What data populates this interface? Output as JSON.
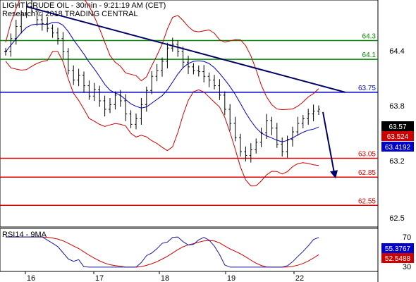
{
  "header": {
    "title": "LIGHT CRUDE OIL - 30min - 9:21:19 AM (CET)",
    "subtitle": "Research © 2018 TRADING CENTRAL"
  },
  "rsi_label": "RSI14 - 9MA",
  "colors": {
    "price": "#000000",
    "bollinger": "#cc0000",
    "ma": "#0000bb",
    "trendline": "#000066",
    "resistance": "#008800",
    "support": "#dd0000",
    "pivot": "#0000cc",
    "rsi": "#1a1aa0",
    "rsi_ma": "#cc0000",
    "tag_price_bg": "#000000",
    "tag_upper_bg": "#cc0000",
    "tag_lower_bg": "#0000cc"
  },
  "chart_data": [
    {
      "type": "line",
      "name": "price",
      "ylim": [
        62.35,
        64.7
      ],
      "y_ticks": [
        64.4,
        63.8,
        63.2,
        62.5
      ],
      "x_ticks": [
        "16",
        "17",
        "18",
        "19",
        "22"
      ],
      "levels": [
        {
          "value": 64.3,
          "label": "64.3",
          "color": "#008800"
        },
        {
          "value": 64.1,
          "label": "64.1",
          "color": "#008800"
        },
        {
          "value": 63.75,
          "label": "63.75",
          "color": "#0000cc"
        },
        {
          "value": 63.05,
          "label": "63.05",
          "color": "#dd0000"
        },
        {
          "value": 62.85,
          "label": "62.85",
          "color": "#dd0000"
        },
        {
          "value": 62.55,
          "label": "62.55",
          "color": "#dd0000"
        }
      ],
      "last_values": [
        {
          "label": "63.57",
          "bg": "#000000"
        },
        {
          "label": "63.524",
          "bg": "#cc0000"
        },
        {
          "label": "63.4192",
          "bg": "#0000cc"
        }
      ],
      "close": [
        64.18,
        64.32,
        64.45,
        64.58,
        64.66,
        64.61,
        64.52,
        64.48,
        64.43,
        64.38,
        64.32,
        64.18,
        63.98,
        63.88,
        63.93,
        63.82,
        63.71,
        63.78,
        63.66,
        63.57,
        63.62,
        63.72,
        63.66,
        63.52,
        63.41,
        63.47,
        63.62,
        63.77,
        63.92,
        63.98,
        64.08,
        64.22,
        64.26,
        64.18,
        64.07,
        64.02,
        63.98,
        63.97,
        63.92,
        63.88,
        63.82,
        63.72,
        63.57,
        63.42,
        63.27,
        63.12,
        63.08,
        63.14,
        63.22,
        63.32,
        63.45,
        63.37,
        63.2,
        63.12,
        63.25,
        63.33,
        63.42,
        63.47,
        63.52,
        63.55,
        63.57
      ]
    },
    {
      "type": "line",
      "name": "RSI14",
      "ylim": [
        25,
        78
      ],
      "y_ticks": [
        70,
        30
      ],
      "last_values": [
        {
          "label": "55.3767",
          "bg": "#0000cc"
        },
        {
          "label": "52.5488",
          "bg": "#cc0000"
        }
      ]
    }
  ]
}
